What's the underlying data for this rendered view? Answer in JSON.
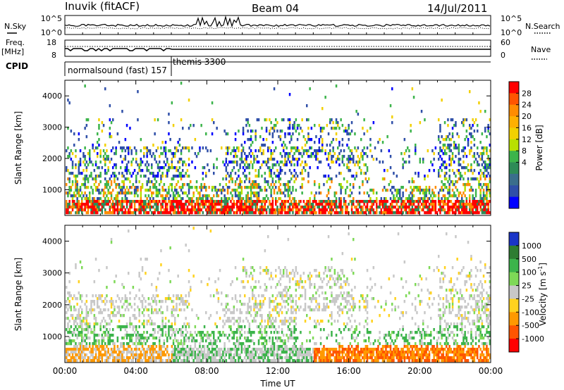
{
  "header": {
    "station": "Inuvik (fitACF)",
    "beam": "Beam 04",
    "date": "14/Jul/2011"
  },
  "strips": {
    "nsky_label": "N.Sky",
    "nsky_ticks": [
      "10^5",
      "10^0"
    ],
    "nsearch_label": "N.Search",
    "nsearch_ticks": [
      "10^5",
      "10^0"
    ],
    "freq_label": "Freq.",
    "freq_unit": "[MHz]",
    "freq_ticks": [
      "18",
      "8"
    ],
    "nave_label": "Nave",
    "nave_ticks": [
      "60",
      "0"
    ],
    "cpid_label": "CPID",
    "cpid_modes": [
      "normalsound (fast) 157",
      "themis 3300"
    ]
  },
  "chart_data": [
    {
      "type": "heatmap",
      "quantity": "power",
      "ylabel": "Slant Range [km]",
      "xlabel": "",
      "ylim": [
        180,
        4500
      ],
      "yticks": [
        "4000",
        "3000",
        "2000",
        "1000"
      ],
      "xlim_hours": [
        0,
        24
      ],
      "colorbar": {
        "label": "Power [dB]",
        "ticks": [
          "28",
          "24",
          "20",
          "16",
          "12",
          "8",
          "4"
        ],
        "colors": [
          "#ff0000",
          "#ff5500",
          "#ff8c00",
          "#ffb000",
          "#f2d000",
          "#b8e000",
          "#3cb44b",
          "#2e8b57",
          "#3a6e8c",
          "#2f4fa8",
          "#0000ff"
        ]
      }
    },
    {
      "type": "heatmap",
      "quantity": "velocity",
      "ylabel": "Slant Range [km]",
      "xlabel": "Time UT",
      "ylim": [
        180,
        4500
      ],
      "yticks": [
        "4000",
        "3000",
        "2000",
        "1000"
      ],
      "xticks": [
        "00:00",
        "04:00",
        "08:00",
        "12:00",
        "16:00",
        "20:00",
        "00:00"
      ],
      "xlim_hours": [
        0,
        24
      ],
      "colorbar": {
        "label": "Velocity [m s",
        "label_sup": "-1",
        "label_end": "]",
        "ticks": [
          "1000",
          "500",
          "100",
          "25",
          "-25",
          "-100",
          "-500",
          "-1000"
        ],
        "colors": [
          "#1a35c8",
          "#2e7d32",
          "#3cb44b",
          "#7ed957",
          "#c8c8c8",
          "#ffd21f",
          "#ff9900",
          "#ff5500",
          "#ff0000"
        ]
      }
    }
  ]
}
